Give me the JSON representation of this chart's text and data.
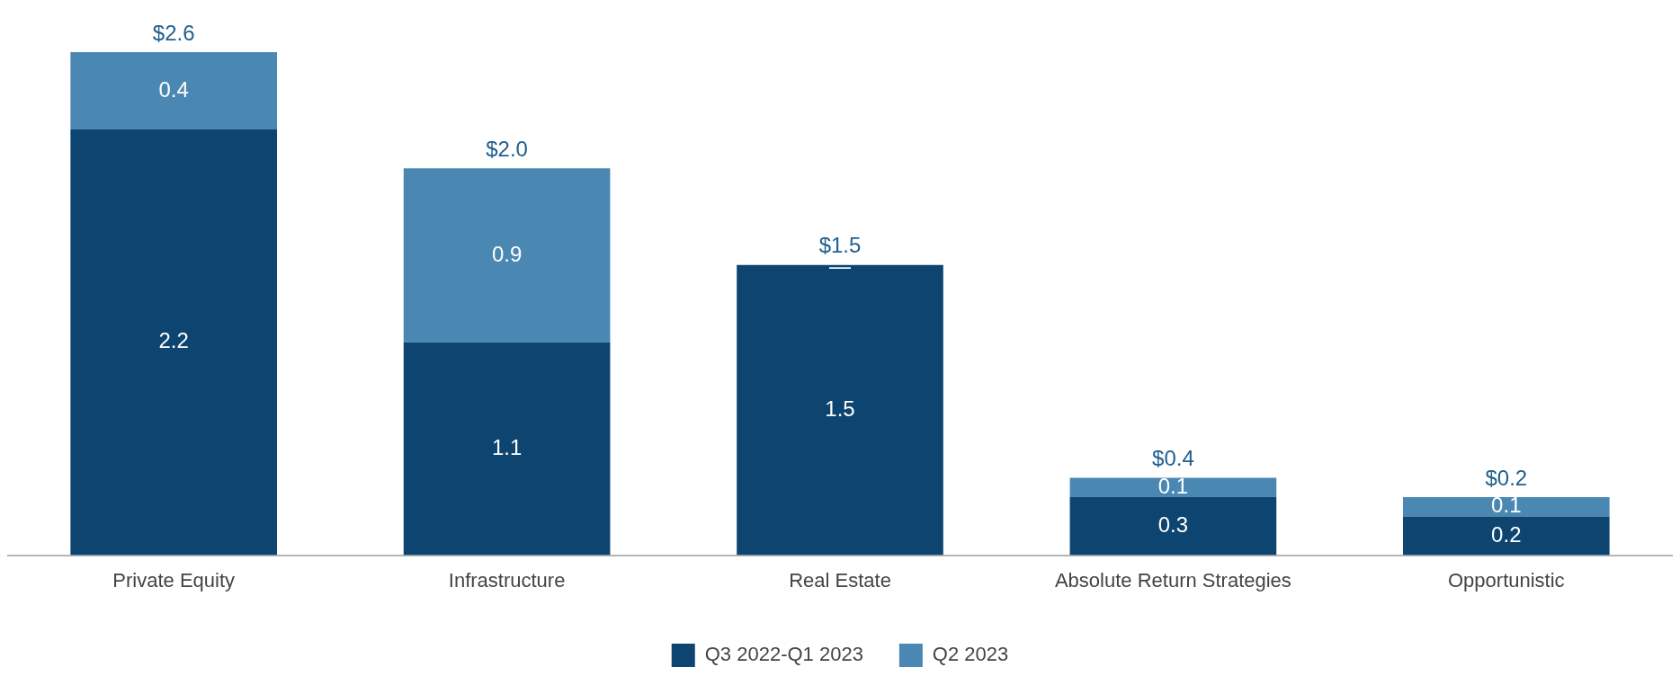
{
  "chart_data": {
    "type": "bar",
    "stacked": true,
    "categories": [
      "Private Equity",
      "Infrastructure",
      "Real Estate",
      "Absolute Return Strategies",
      "Opportunistic"
    ],
    "series": [
      {
        "name": "Q3 2022-Q1 2023",
        "color": "#0d4470",
        "values": [
          2.2,
          1.1,
          1.5,
          0.3,
          0.2
        ],
        "value_labels": [
          "2.2",
          "1.1",
          "1.5",
          "0.3",
          "0.2"
        ]
      },
      {
        "name": "Q2 2023",
        "color": "#4a88b3",
        "values": [
          0.4,
          0.9,
          0,
          0.1,
          0.1
        ],
        "value_labels": [
          "0.4",
          "0.9",
          "—",
          "0.1",
          "0.1"
        ]
      }
    ],
    "totals": [
      "$2.6",
      "$2.0",
      "$1.5",
      "$0.4",
      "$0.2"
    ],
    "legend": "bottom",
    "grid": false
  }
}
